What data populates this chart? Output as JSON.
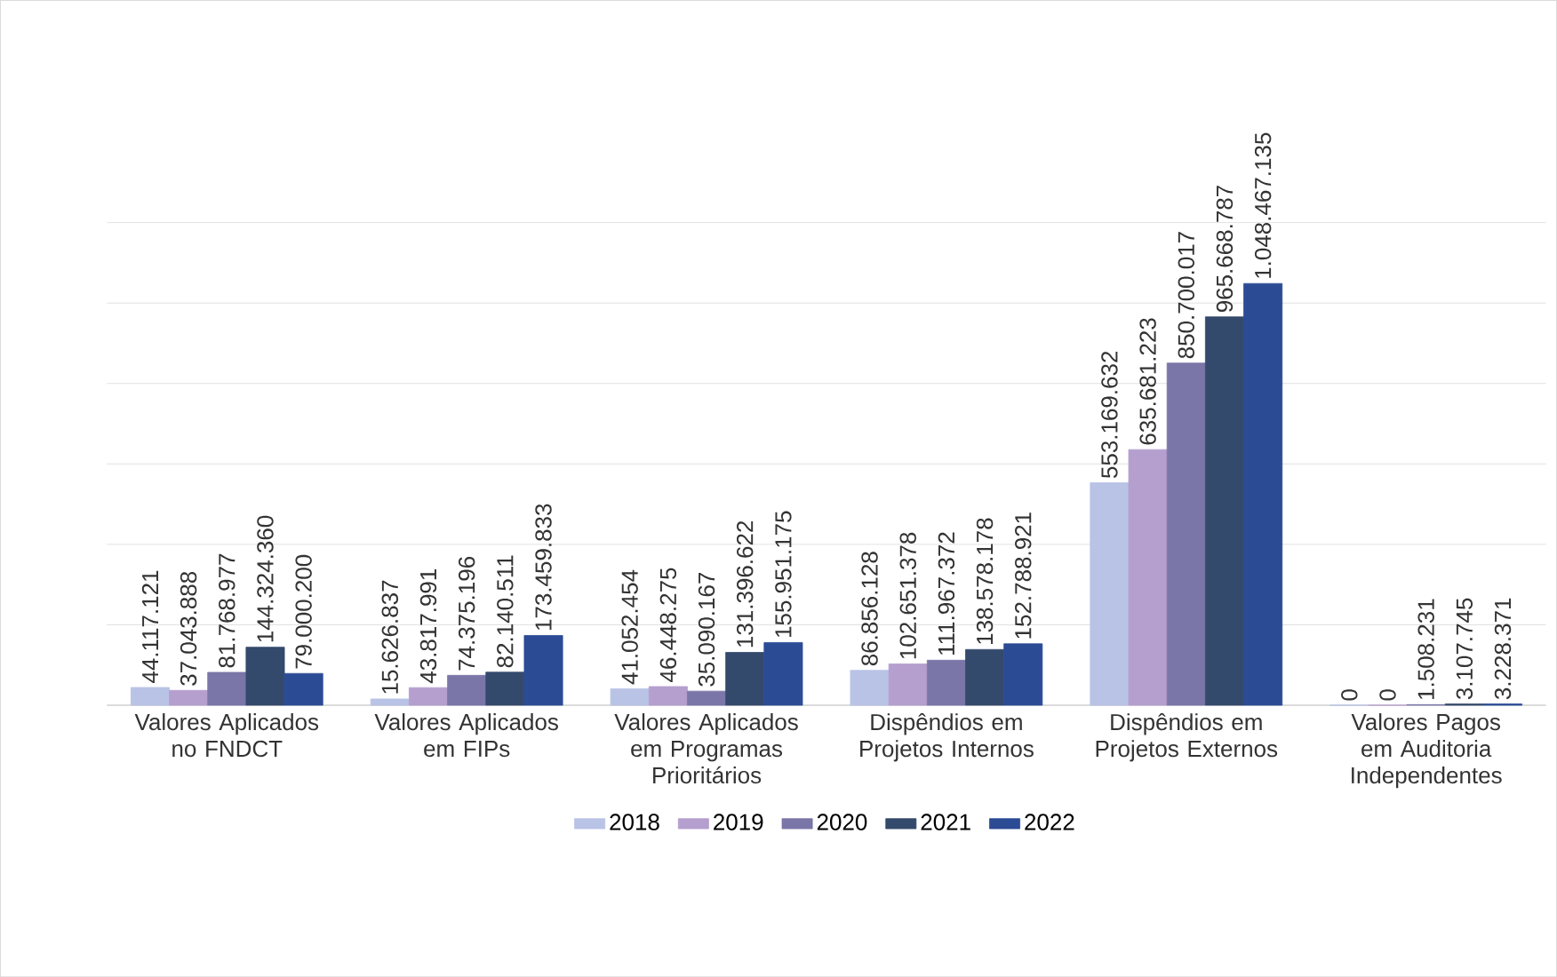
{
  "chart_data": {
    "type": "bar",
    "categories": [
      "Valores Aplicados no FNDCT",
      "Valores Aplicados em FIPs",
      "Valores Aplicados em Programas Prioritários",
      "Dispêndios em Projetos Internos",
      "Dispêndios em Projetos Externos",
      "Valores Pagos em Auditoria Independentes"
    ],
    "series": [
      {
        "name": "2018",
        "color": "#b9c3e6",
        "values": [
          44117121,
          15626837,
          41052454,
          86856128,
          553169632,
          0
        ],
        "value_labels": [
          "44.117.121",
          "15.626.837",
          "41.052.454",
          "86.856.128",
          "553.169.632",
          "0"
        ]
      },
      {
        "name": "2019",
        "color": "#b59fcf",
        "values": [
          37043888,
          43817991,
          46448275,
          102651378,
          635681223,
          0
        ],
        "value_labels": [
          "37.043.888",
          "43.817.991",
          "46.448.275",
          "102.651.378",
          "635.681.223",
          "0"
        ]
      },
      {
        "name": "2020",
        "color": "#7a76a8",
        "values": [
          81768977,
          74375196,
          35090167,
          111967372,
          850700017,
          1508231
        ],
        "value_labels": [
          "81.768.977",
          "74.375.196",
          "35.090.167",
          "111.967.372",
          "850.700.017",
          "1.508.231"
        ]
      },
      {
        "name": "2021",
        "color": "#344a6c",
        "values": [
          144324360,
          82140511,
          131396622,
          138578178,
          965668787,
          3107745
        ],
        "value_labels": [
          "144.324.360",
          "82.140.511",
          "131.396.622",
          "138.578.178",
          "965.668.787",
          "3.107.745"
        ]
      },
      {
        "name": "2022",
        "color": "#2c4b95",
        "values": [
          79000200,
          173459833,
          155951175,
          152788921,
          1048467135,
          3228371
        ],
        "value_labels": [
          "79.000.200",
          "173.459.833",
          "155.951.175",
          "152.788.921",
          "1.048.467.135",
          "3.228.371"
        ]
      }
    ],
    "tick_labels": "x",
    "grid": "y",
    "legend": "bottom"
  }
}
